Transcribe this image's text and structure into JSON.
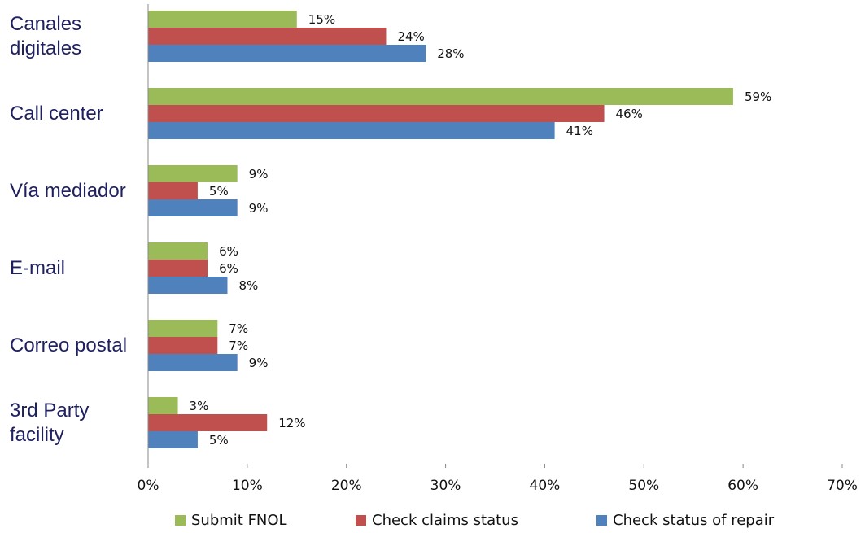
{
  "chart_data": {
    "type": "hbar",
    "categories": [
      "Canales digitales",
      "Call center",
      "Vía mediador",
      "E-mail",
      "Correo postal",
      "3rd Party facility"
    ],
    "series": [
      {
        "name": "Submit FNOL",
        "color": "#9bbb59",
        "values": [
          15,
          59,
          9,
          6,
          7,
          3
        ],
        "value_labels": [
          "15%",
          "59%",
          "9%",
          "6%",
          "7%",
          "3%"
        ]
      },
      {
        "name": "Check claims status",
        "color": "#c0504d",
        "values": [
          24,
          46,
          5,
          6,
          7,
          12
        ],
        "value_labels": [
          "24%",
          "46%",
          "5%",
          "6%",
          "7%",
          "12%"
        ]
      },
      {
        "name": "Check status of repair",
        "color": "#4f81bd",
        "values": [
          28,
          41,
          9,
          8,
          9,
          5
        ],
        "value_labels": [
          "28%",
          "41%",
          "9%",
          "8%",
          "9%",
          "5%"
        ]
      }
    ],
    "xlim": [
      0,
      70
    ],
    "xticks": [
      {
        "value": 0,
        "label": "0%"
      },
      {
        "value": 10,
        "label": "10%"
      },
      {
        "value": 20,
        "label": "20%"
      },
      {
        "value": 30,
        "label": "30%"
      },
      {
        "value": 40,
        "label": "40%"
      },
      {
        "value": 50,
        "label": "50%"
      },
      {
        "value": 60,
        "label": "60%"
      },
      {
        "value": 70,
        "label": "70%"
      }
    ],
    "grid": false,
    "legend": "bottom"
  }
}
